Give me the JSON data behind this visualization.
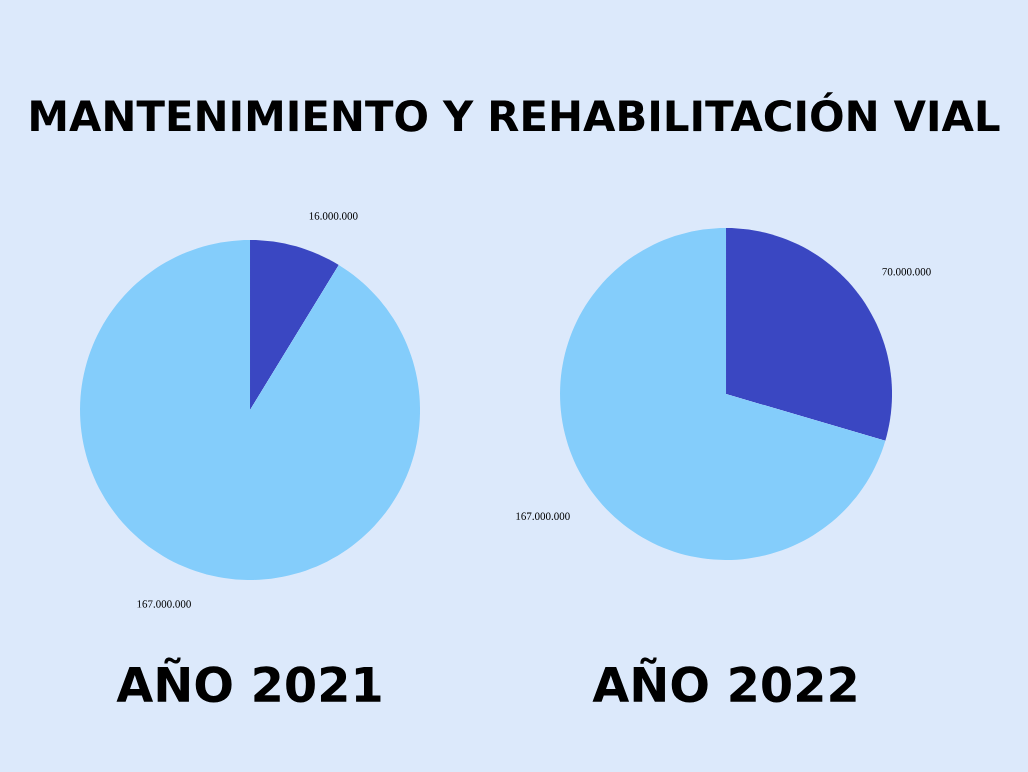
{
  "chart_data": [
    {
      "type": "pie",
      "title": "MANTENIMIENTO Y REHABILITACIÓN VIAL",
      "xlabel": "AÑO 2021",
      "categories": [
        null,
        null
      ],
      "values": [
        16000000,
        167000000
      ],
      "value_labels": [
        "16.000.000",
        "167.000.000"
      ],
      "colors": [
        "#3a47c2",
        "#84cdfb"
      ]
    },
    {
      "type": "pie",
      "xlabel": "AÑO 2022",
      "categories": [
        null,
        null
      ],
      "values": [
        70000000,
        167000000
      ],
      "value_labels": [
        "70.000.000",
        "167.000.000"
      ],
      "colors": [
        "#3a47c2",
        "#84cdfb"
      ]
    }
  ]
}
